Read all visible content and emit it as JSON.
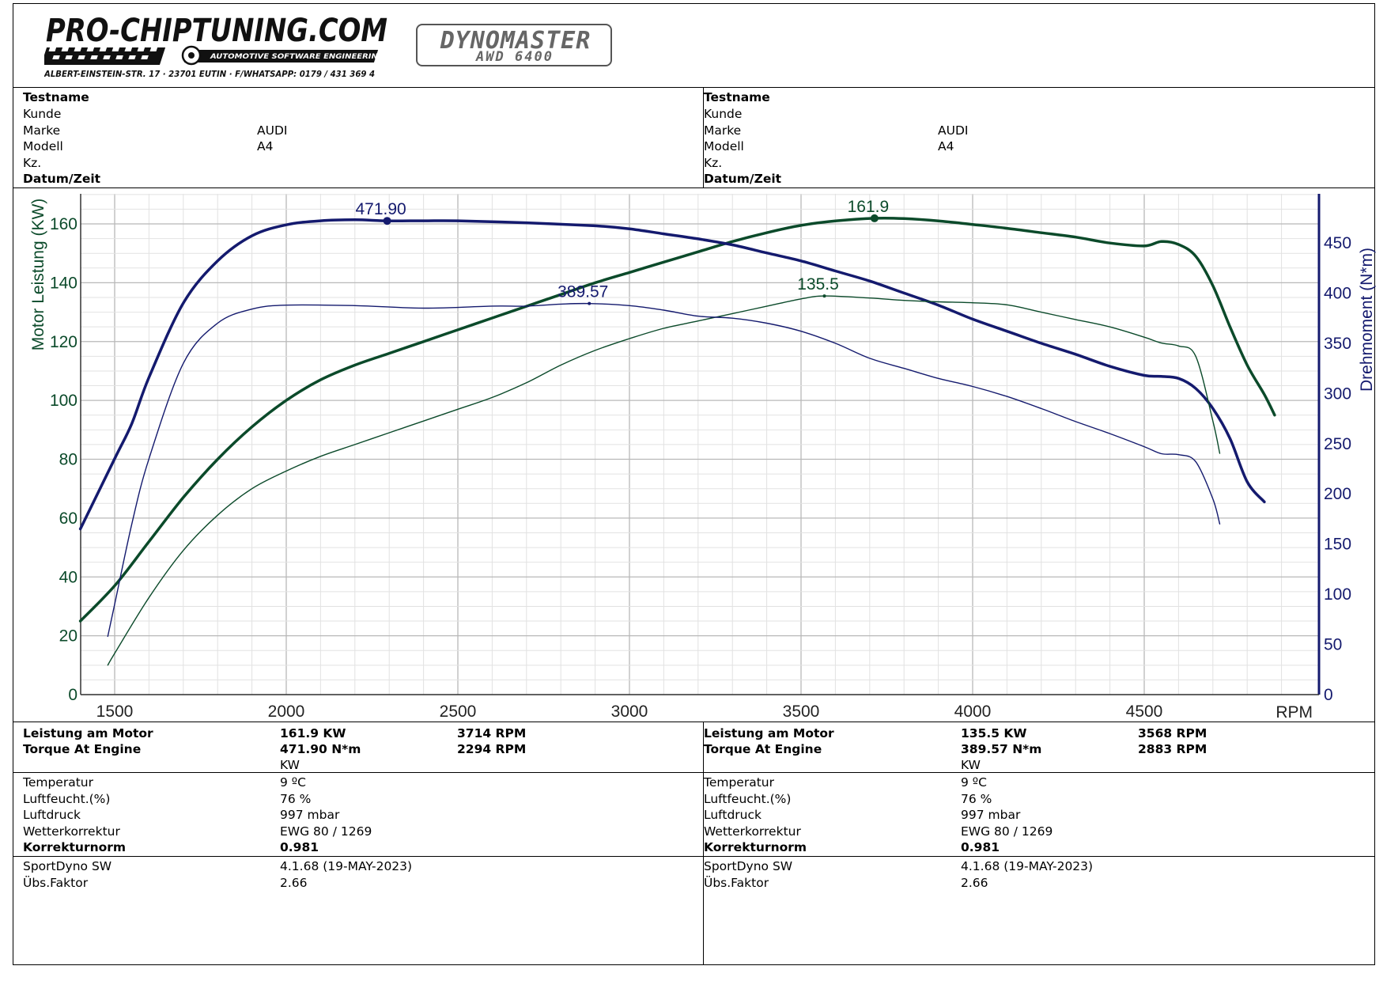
{
  "header": {
    "logo_main": "PRO-CHIPTUNING.COM",
    "logo_tagline": "AUTOMOTIVE SOFTWARE ENGINEERING",
    "logo_address": "ALBERT-EINSTEIN-STR. 17 · 23701 EUTIN · F/WHATSAPP: 0179 / 431 369 4",
    "dyno_brand": "DYNOMASTER",
    "dyno_model": "AWD 6400"
  },
  "info_labels": [
    "Testname",
    "Kunde",
    "Marke",
    "Modell",
    "Kz.",
    "Datum/Zeit"
  ],
  "info_left": {
    "marke": "AUDI",
    "modell": "A4"
  },
  "info_right": {
    "marke": "AUDI",
    "modell": "A4"
  },
  "results_labels": {
    "power": "Leistung am Motor",
    "torque": "Torque At Engine",
    "temp": "Temperatur",
    "humidity": "Luftfeucht.(%)",
    "pressure": "Luftdruck",
    "weather": "Wetterkorrektur",
    "norm": "Korrekturnorm",
    "sw": "SportDyno SW",
    "ratio": "Übs.Faktor"
  },
  "results_left": {
    "power": "161.9 KW",
    "power_rpm": "3714 RPM",
    "torque": "471.90 N*m",
    "torque_rpm": "2294 RPM",
    "unit": "KW",
    "temp": "9 ºC",
    "humidity": "76 %",
    "pressure": "997 mbar",
    "weather": "EWG 80 / 1269",
    "norm": "0.981",
    "sw": "4.1.68 (19-MAY-2023)",
    "ratio": "2.66"
  },
  "results_right": {
    "power": "135.5 KW",
    "power_rpm": "3568 RPM",
    "torque": "389.57 N*m",
    "torque_rpm": "2883 RPM",
    "unit": "KW",
    "temp": "9 ºC",
    "humidity": "76 %",
    "pressure": "997 mbar",
    "weather": "EWG 80 / 1269",
    "norm": "0.981",
    "sw": "4.1.68 (19-MAY-2023)",
    "ratio": "2.66"
  },
  "colors": {
    "power": "#0b4a2a",
    "torque": "#141a6e",
    "grid_major": "#b8b8b8",
    "grid_minor": "#e2e2e2"
  },
  "chart_data": {
    "type": "line",
    "xlabel": "RPM",
    "ylabel_left": "Motor Leistung (KW)",
    "ylabel_right": "Drehmoment (N*m)",
    "xlim": [
      1400,
      5000
    ],
    "ylim_left": [
      0,
      170
    ],
    "ylim_right": [
      0,
      500
    ],
    "x_ticks": [
      1500,
      2000,
      2500,
      3000,
      3500,
      4000,
      4500
    ],
    "y_left_ticks": [
      0,
      20,
      40,
      60,
      80,
      100,
      120,
      140,
      160
    ],
    "y_right_ticks": [
      0,
      50,
      100,
      150,
      200,
      250,
      300,
      350,
      400,
      450
    ],
    "grid": true,
    "series": [
      {
        "axis": "left",
        "color": "#0b4a2a",
        "width": 3.5,
        "points": [
          [
            1400,
            25
          ],
          [
            1500,
            37
          ],
          [
            1600,
            52
          ],
          [
            1700,
            67
          ],
          [
            1800,
            80
          ],
          [
            1900,
            91
          ],
          [
            2000,
            100
          ],
          [
            2100,
            107
          ],
          [
            2200,
            112
          ],
          [
            2300,
            116
          ],
          [
            2400,
            120
          ],
          [
            2500,
            124
          ],
          [
            2600,
            128
          ],
          [
            2700,
            132
          ],
          [
            2800,
            136
          ],
          [
            2900,
            140
          ],
          [
            3000,
            143.5
          ],
          [
            3100,
            147
          ],
          [
            3200,
            150.5
          ],
          [
            3300,
            154
          ],
          [
            3400,
            157
          ],
          [
            3500,
            159.5
          ],
          [
            3600,
            161
          ],
          [
            3714,
            161.9
          ],
          [
            3800,
            161.8
          ],
          [
            3900,
            161
          ],
          [
            4000,
            159.8
          ],
          [
            4100,
            158.5
          ],
          [
            4200,
            157
          ],
          [
            4300,
            155.5
          ],
          [
            4400,
            153.5
          ],
          [
            4500,
            152.5
          ],
          [
            4550,
            154
          ],
          [
            4600,
            153
          ],
          [
            4650,
            149
          ],
          [
            4700,
            139
          ],
          [
            4750,
            125
          ],
          [
            4800,
            112
          ],
          [
            4850,
            102
          ],
          [
            4880,
            95
          ]
        ]
      },
      {
        "axis": "right",
        "color": "#141a6e",
        "width": 3.5,
        "points": [
          [
            1400,
            165
          ],
          [
            1500,
            235
          ],
          [
            1550,
            270
          ],
          [
            1600,
            316
          ],
          [
            1700,
            390
          ],
          [
            1800,
            432
          ],
          [
            1900,
            457
          ],
          [
            2000,
            468
          ],
          [
            2100,
            472
          ],
          [
            2200,
            473
          ],
          [
            2294,
            471.9
          ],
          [
            2400,
            472
          ],
          [
            2500,
            472
          ],
          [
            2700,
            470
          ],
          [
            2900,
            467
          ],
          [
            3000,
            464
          ],
          [
            3100,
            459
          ],
          [
            3200,
            454
          ],
          [
            3300,
            448
          ],
          [
            3400,
            440
          ],
          [
            3500,
            432
          ],
          [
            3600,
            422
          ],
          [
            3700,
            412
          ],
          [
            3800,
            400
          ],
          [
            3900,
            388
          ],
          [
            4000,
            374
          ],
          [
            4100,
            362
          ],
          [
            4200,
            350
          ],
          [
            4300,
            339
          ],
          [
            4400,
            327
          ],
          [
            4500,
            318
          ],
          [
            4550,
            317
          ],
          [
            4600,
            315
          ],
          [
            4650,
            305
          ],
          [
            4700,
            285
          ],
          [
            4750,
            255
          ],
          [
            4800,
            212
          ],
          [
            4850,
            192
          ]
        ]
      },
      {
        "axis": "left",
        "color": "#0b4a2a",
        "width": 1.4,
        "points": [
          [
            1480,
            10
          ],
          [
            1500,
            14
          ],
          [
            1600,
            33
          ],
          [
            1700,
            49
          ],
          [
            1800,
            61
          ],
          [
            1900,
            70
          ],
          [
            2000,
            76
          ],
          [
            2100,
            81
          ],
          [
            2200,
            85
          ],
          [
            2300,
            89
          ],
          [
            2400,
            93
          ],
          [
            2500,
            97
          ],
          [
            2600,
            101
          ],
          [
            2700,
            106
          ],
          [
            2800,
            112
          ],
          [
            2900,
            117
          ],
          [
            3000,
            121
          ],
          [
            3100,
            124.5
          ],
          [
            3200,
            127
          ],
          [
            3300,
            129.5
          ],
          [
            3400,
            132
          ],
          [
            3500,
            134.5
          ],
          [
            3568,
            135.5
          ],
          [
            3700,
            134.8
          ],
          [
            3800,
            134
          ],
          [
            3900,
            133.5
          ],
          [
            4000,
            133.2
          ],
          [
            4100,
            132.5
          ],
          [
            4200,
            130
          ],
          [
            4300,
            127.5
          ],
          [
            4400,
            125
          ],
          [
            4500,
            121.5
          ],
          [
            4550,
            119.5
          ],
          [
            4600,
            118.5
          ],
          [
            4650,
            115
          ],
          [
            4700,
            93
          ],
          [
            4720,
            82
          ]
        ]
      },
      {
        "axis": "right",
        "color": "#141a6e",
        "width": 1.4,
        "points": [
          [
            1480,
            58
          ],
          [
            1500,
            90
          ],
          [
            1550,
            170
          ],
          [
            1600,
            235
          ],
          [
            1700,
            330
          ],
          [
            1800,
            370
          ],
          [
            1900,
            384
          ],
          [
            2000,
            388
          ],
          [
            2200,
            387.5
          ],
          [
            2400,
            385
          ],
          [
            2600,
            387
          ],
          [
            2700,
            387
          ],
          [
            2800,
            389
          ],
          [
            2883,
            389.57
          ],
          [
            3000,
            387.5
          ],
          [
            3100,
            383
          ],
          [
            3200,
            377
          ],
          [
            3300,
            375
          ],
          [
            3400,
            370
          ],
          [
            3500,
            362
          ],
          [
            3600,
            350
          ],
          [
            3700,
            335
          ],
          [
            3800,
            325
          ],
          [
            3900,
            315
          ],
          [
            4000,
            307
          ],
          [
            4100,
            297
          ],
          [
            4200,
            285
          ],
          [
            4300,
            272
          ],
          [
            4400,
            260
          ],
          [
            4500,
            247
          ],
          [
            4550,
            240
          ],
          [
            4600,
            239
          ],
          [
            4650,
            232
          ],
          [
            4700,
            195
          ],
          [
            4720,
            170
          ]
        ]
      }
    ],
    "annotations": [
      {
        "text": "471.90",
        "x": 2294,
        "y": 471.9,
        "axis": "right",
        "color": "#141a6e",
        "marker": true
      },
      {
        "text": "161.9",
        "x": 3714,
        "y": 161.9,
        "axis": "left",
        "color": "#0b4a2a",
        "marker": true
      },
      {
        "text": "389.57",
        "x": 2883,
        "y": 389.57,
        "axis": "right",
        "color": "#141a6e",
        "marker": false
      },
      {
        "text": "135.5",
        "x": 3568,
        "y": 135.5,
        "axis": "left",
        "color": "#0b4a2a",
        "marker": false
      }
    ]
  }
}
